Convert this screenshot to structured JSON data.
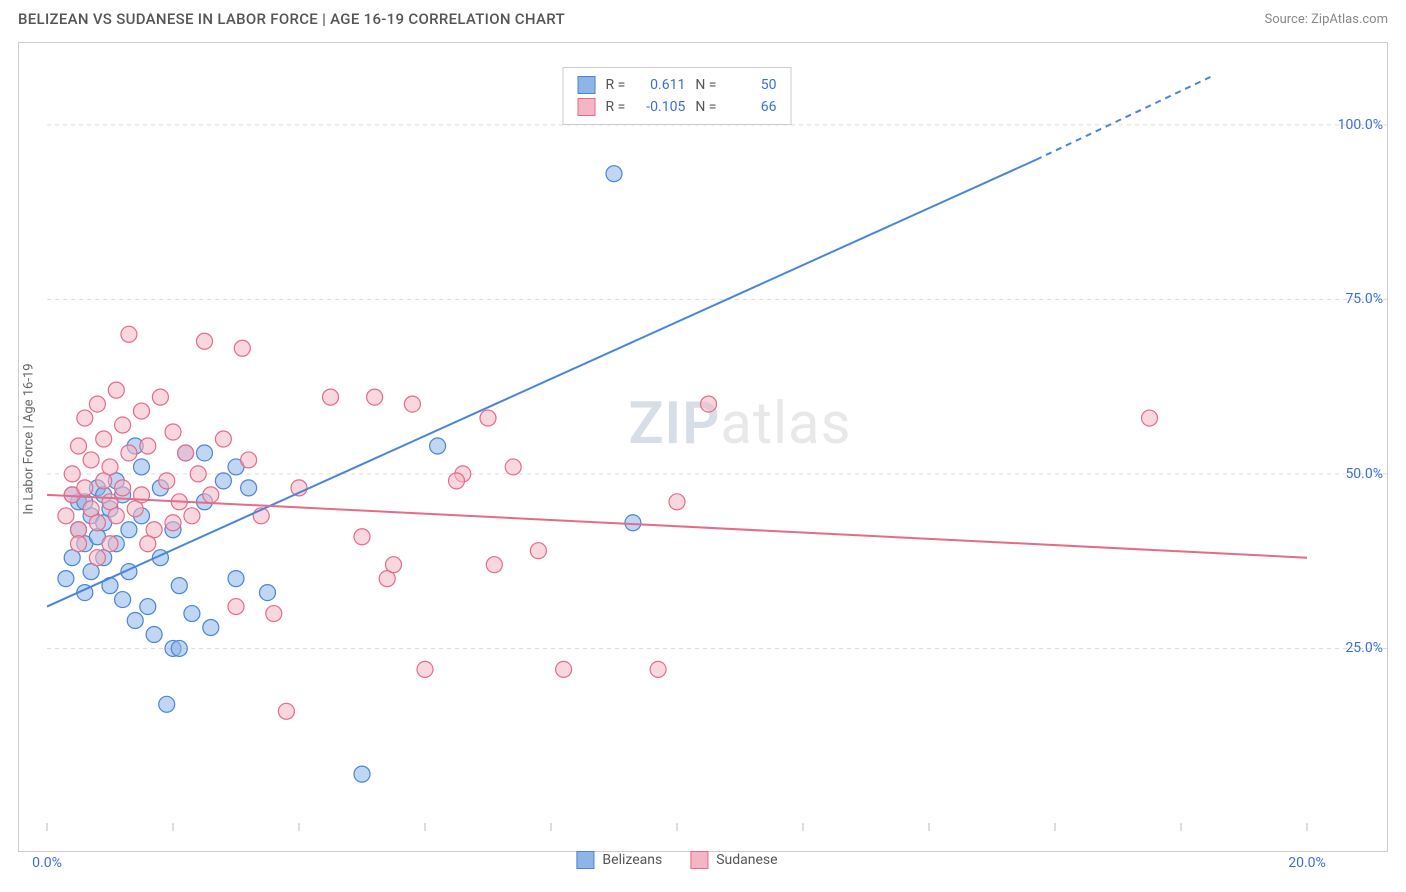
{
  "title": "BELIZEAN VS SUDANESE IN LABOR FORCE | AGE 16-19 CORRELATION CHART",
  "source": "Source: ZipAtlas.com",
  "y_axis_label": "In Labor Force | Age 16-19",
  "watermark_bold": "ZIP",
  "watermark_rest": "atlas",
  "chart": {
    "type": "scatter",
    "xlim": [
      0,
      20
    ],
    "ylim": [
      0,
      110
    ],
    "y_ticks": [
      25,
      50,
      75,
      100
    ],
    "y_tick_labels": [
      "25.0%",
      "50.0%",
      "75.0%",
      "100.0%"
    ],
    "x_ticks": [
      0,
      2,
      4,
      6,
      8,
      10,
      12,
      14,
      16,
      18,
      20
    ],
    "x_tick_labels_shown": {
      "0": "0.0%",
      "20": "20.0%"
    },
    "background_color": "#ffffff",
    "grid_color": "#dddddd",
    "marker_radius": 8,
    "marker_opacity": 0.55,
    "series": [
      {
        "name": "Belizeans",
        "color_fill": "#8db5e8",
        "color_stroke": "#4a85d6",
        "r_value": "0.611",
        "n_value": "50",
        "trend": {
          "x1": 0,
          "y1": 31,
          "x2_solid": 15.7,
          "y2_solid": 95,
          "x2_dash": 18.5,
          "y2_dash": 107
        },
        "points": [
          [
            0.3,
            35
          ],
          [
            0.4,
            38
          ],
          [
            0.5,
            46
          ],
          [
            0.5,
            42
          ],
          [
            0.6,
            33
          ],
          [
            0.6,
            40
          ],
          [
            0.7,
            44
          ],
          [
            0.7,
            36
          ],
          [
            0.8,
            48
          ],
          [
            0.8,
            41
          ],
          [
            0.9,
            43
          ],
          [
            0.9,
            38
          ],
          [
            1.0,
            34
          ],
          [
            1.0,
            45
          ],
          [
            1.1,
            49
          ],
          [
            1.1,
            40
          ],
          [
            1.2,
            32
          ],
          [
            1.2,
            47
          ],
          [
            1.3,
            36
          ],
          [
            1.3,
            42
          ],
          [
            1.4,
            29
          ],
          [
            1.5,
            51
          ],
          [
            1.5,
            44
          ],
          [
            1.6,
            31
          ],
          [
            1.7,
            27
          ],
          [
            1.8,
            38
          ],
          [
            1.8,
            48
          ],
          [
            2.0,
            25
          ],
          [
            2.0,
            42
          ],
          [
            2.1,
            34
          ],
          [
            2.2,
            53
          ],
          [
            2.3,
            30
          ],
          [
            2.5,
            46
          ],
          [
            2.6,
            28
          ],
          [
            2.8,
            49
          ],
          [
            3.0,
            35
          ],
          [
            3.0,
            51
          ],
          [
            3.2,
            48
          ],
          [
            3.5,
            33
          ],
          [
            1.9,
            17
          ],
          [
            2.1,
            25
          ],
          [
            1.4,
            54
          ],
          [
            2.5,
            53
          ],
          [
            5.0,
            7
          ],
          [
            6.2,
            54
          ],
          [
            9.0,
            93
          ],
          [
            9.3,
            43
          ],
          [
            0.4,
            47
          ],
          [
            0.6,
            46
          ],
          [
            0.9,
            47
          ]
        ]
      },
      {
        "name": "Sudanese",
        "color_fill": "#f4b6c5",
        "color_stroke": "#e56b8a",
        "r_value": "-0.105",
        "n_value": "66",
        "trend": {
          "x1": 0,
          "y1": 47,
          "x2_solid": 20,
          "y2_solid": 38,
          "x2_dash": 20,
          "y2_dash": 38
        },
        "points": [
          [
            0.3,
            44
          ],
          [
            0.4,
            50
          ],
          [
            0.4,
            47
          ],
          [
            0.5,
            54
          ],
          [
            0.5,
            42
          ],
          [
            0.6,
            48
          ],
          [
            0.6,
            58
          ],
          [
            0.7,
            45
          ],
          [
            0.7,
            52
          ],
          [
            0.8,
            60
          ],
          [
            0.8,
            43
          ],
          [
            0.9,
            55
          ],
          [
            0.9,
            49
          ],
          [
            1.0,
            46
          ],
          [
            1.0,
            51
          ],
          [
            1.1,
            62
          ],
          [
            1.1,
            44
          ],
          [
            1.2,
            57
          ],
          [
            1.2,
            48
          ],
          [
            1.3,
            53
          ],
          [
            1.4,
            45
          ],
          [
            1.5,
            59
          ],
          [
            1.5,
            47
          ],
          [
            1.6,
            54
          ],
          [
            1.7,
            42
          ],
          [
            1.8,
            61
          ],
          [
            1.9,
            49
          ],
          [
            2.0,
            56
          ],
          [
            2.1,
            46
          ],
          [
            2.2,
            53
          ],
          [
            2.3,
            44
          ],
          [
            2.4,
            50
          ],
          [
            2.6,
            47
          ],
          [
            2.8,
            55
          ],
          [
            3.0,
            31
          ],
          [
            3.1,
            68
          ],
          [
            3.2,
            52
          ],
          [
            3.4,
            44
          ],
          [
            3.6,
            30
          ],
          [
            3.8,
            16
          ],
          [
            1.3,
            70
          ],
          [
            2.5,
            69
          ],
          [
            5.0,
            41
          ],
          [
            5.2,
            61
          ],
          [
            5.4,
            35
          ],
          [
            5.5,
            37
          ],
          [
            5.8,
            60
          ],
          [
            6.0,
            22
          ],
          [
            6.6,
            50
          ],
          [
            7.0,
            58
          ],
          [
            7.1,
            37
          ],
          [
            7.4,
            51
          ],
          [
            7.8,
            39
          ],
          [
            8.2,
            22
          ],
          [
            9.7,
            22
          ],
          [
            10.0,
            46
          ],
          [
            10.5,
            60
          ],
          [
            17.5,
            58
          ],
          [
            0.5,
            40
          ],
          [
            0.8,
            38
          ],
          [
            1.0,
            40
          ],
          [
            1.6,
            40
          ],
          [
            2.0,
            43
          ],
          [
            4.0,
            48
          ],
          [
            4.5,
            61
          ],
          [
            6.5,
            49
          ]
        ]
      }
    ]
  },
  "legend_box": {
    "r_label": "R  =",
    "n_label": "N  ="
  },
  "bottom_legend": [
    {
      "label": "Belizeans",
      "fill": "#8db5e8",
      "stroke": "#4a85d6"
    },
    {
      "label": "Sudanese",
      "fill": "#f4b6c5",
      "stroke": "#e56b8a"
    }
  ]
}
